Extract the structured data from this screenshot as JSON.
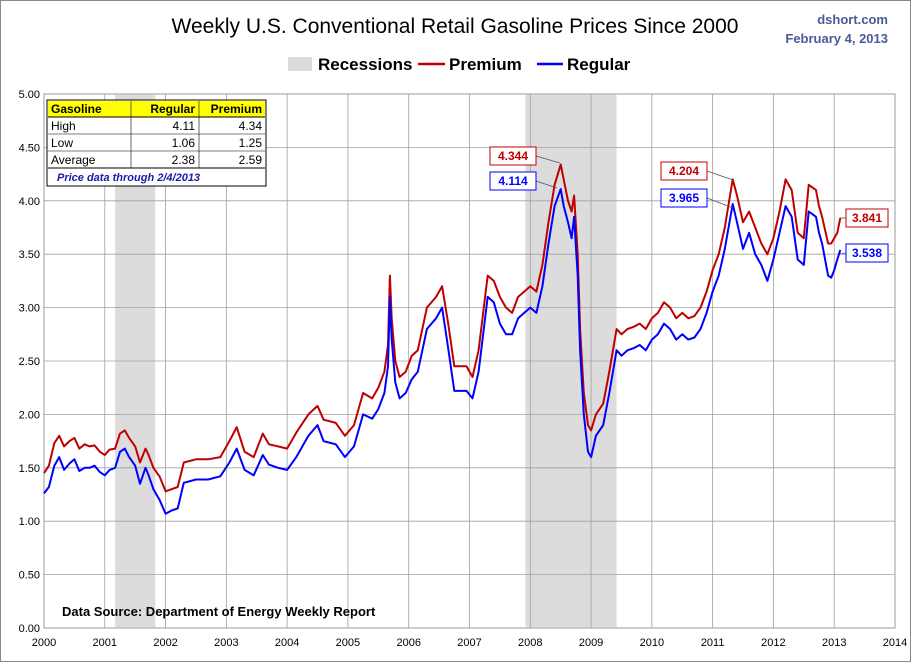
{
  "header": {
    "title": "Weekly U.S. Conventional Retail Gasoline Prices Since 2000",
    "brand": "dshort.com",
    "date": "February 4, 2013"
  },
  "colors": {
    "premium": "#c00000",
    "regular": "#0000ff",
    "recession": "#dcdcdc"
  },
  "legend": {
    "recessions": "Recessions",
    "premium": "Premium",
    "regular": "Regular"
  },
  "source": "Data Source: Department of Energy Weekly Report",
  "stats_table": {
    "headers": [
      "Gasoline",
      "Regular",
      "Premium"
    ],
    "rows": [
      {
        "label": "High",
        "regular": "4.11",
        "premium": "4.34"
      },
      {
        "label": "Low",
        "regular": "1.06",
        "premium": "1.25"
      },
      {
        "label": "Average",
        "regular": "2.38",
        "premium": "2.59"
      }
    ],
    "note": "Price data through 2/4/2013"
  },
  "annotations": [
    {
      "text": "4.344",
      "series": "premium"
    },
    {
      "text": "4.114",
      "series": "regular"
    },
    {
      "text": "4.204",
      "series": "premium"
    },
    {
      "text": "3.965",
      "series": "regular"
    },
    {
      "text": "3.841",
      "series": "premium"
    },
    {
      "text": "3.538",
      "series": "regular"
    }
  ],
  "chart_data": {
    "type": "line",
    "title": "Weekly U.S. Conventional Retail Gasoline Prices Since 2000",
    "xlim": [
      2000,
      2014
    ],
    "ylim": [
      0,
      5
    ],
    "x_ticks": [
      "2000",
      "2001",
      "2002",
      "2003",
      "2004",
      "2005",
      "2006",
      "2007",
      "2008",
      "2009",
      "2010",
      "2011",
      "2012",
      "2013",
      "2014"
    ],
    "y_ticks": [
      "0.00",
      "0.50",
      "1.00",
      "1.50",
      "2.00",
      "2.50",
      "3.00",
      "3.50",
      "4.00",
      "4.50",
      "5.00"
    ],
    "grid": true,
    "legend_position": "top-center",
    "recessions": [
      [
        2001.17,
        2001.83
      ],
      [
        2007.92,
        2009.42
      ]
    ],
    "series": [
      {
        "name": "Premium",
        "x": [
          2000.0,
          2000.08,
          2000.17,
          2000.25,
          2000.33,
          2000.42,
          2000.5,
          2000.58,
          2000.67,
          2000.75,
          2000.83,
          2000.92,
          2001.0,
          2001.08,
          2001.17,
          2001.25,
          2001.33,
          2001.4,
          2001.5,
          2001.58,
          2001.67,
          2001.72,
          2001.8,
          2001.9,
          2002.0,
          2002.1,
          2002.2,
          2002.3,
          2002.5,
          2002.7,
          2002.9,
          2003.05,
          2003.17,
          2003.3,
          2003.45,
          2003.6,
          2003.7,
          2003.85,
          2004.0,
          2004.15,
          2004.35,
          2004.5,
          2004.6,
          2004.8,
          2004.95,
          2005.1,
          2005.25,
          2005.4,
          2005.5,
          2005.6,
          2005.66,
          2005.69,
          2005.72,
          2005.78,
          2005.85,
          2005.95,
          2006.05,
          2006.15,
          2006.3,
          2006.45,
          2006.55,
          2006.65,
          2006.75,
          2006.85,
          2006.95,
          2007.05,
          2007.15,
          2007.3,
          2007.4,
          2007.5,
          2007.6,
          2007.7,
          2007.8,
          2007.9,
          2008.0,
          2008.1,
          2008.2,
          2008.3,
          2008.4,
          2008.5,
          2008.55,
          2008.62,
          2008.68,
          2008.72,
          2008.78,
          2008.82,
          2008.88,
          2008.95,
          2009.0,
          2009.08,
          2009.2,
          2009.3,
          2009.42,
          2009.5,
          2009.6,
          2009.7,
          2009.8,
          2009.9,
          2010.0,
          2010.1,
          2010.2,
          2010.3,
          2010.4,
          2010.5,
          2010.6,
          2010.7,
          2010.8,
          2010.9,
          2011.0,
          2011.1,
          2011.2,
          2011.33,
          2011.4,
          2011.5,
          2011.6,
          2011.7,
          2011.8,
          2011.9,
          2012.0,
          2012.1,
          2012.2,
          2012.3,
          2012.4,
          2012.5,
          2012.58,
          2012.7,
          2012.75,
          2012.8,
          2012.9,
          2012.95,
          2013.0,
          2013.05,
          2013.1
        ],
        "y": [
          1.45,
          1.52,
          1.73,
          1.8,
          1.7,
          1.75,
          1.78,
          1.68,
          1.72,
          1.7,
          1.71,
          1.65,
          1.62,
          1.67,
          1.68,
          1.82,
          1.85,
          1.78,
          1.7,
          1.55,
          1.68,
          1.62,
          1.5,
          1.42,
          1.28,
          1.3,
          1.32,
          1.55,
          1.58,
          1.58,
          1.6,
          1.75,
          1.88,
          1.65,
          1.6,
          1.82,
          1.72,
          1.7,
          1.68,
          1.83,
          2.0,
          2.08,
          1.95,
          1.92,
          1.8,
          1.9,
          2.2,
          2.15,
          2.25,
          2.4,
          2.65,
          3.3,
          2.9,
          2.5,
          2.35,
          2.4,
          2.55,
          2.6,
          3.0,
          3.1,
          3.2,
          2.85,
          2.45,
          2.45,
          2.45,
          2.35,
          2.6,
          3.3,
          3.25,
          3.1,
          3.0,
          2.95,
          3.1,
          3.15,
          3.2,
          3.15,
          3.4,
          3.8,
          4.15,
          4.34,
          4.2,
          4.0,
          3.9,
          4.05,
          3.5,
          2.8,
          2.2,
          1.9,
          1.85,
          2.0,
          2.1,
          2.4,
          2.8,
          2.75,
          2.8,
          2.82,
          2.85,
          2.8,
          2.9,
          2.95,
          3.05,
          3.0,
          2.9,
          2.95,
          2.9,
          2.92,
          3.0,
          3.15,
          3.35,
          3.5,
          3.75,
          4.2,
          4.05,
          3.8,
          3.9,
          3.75,
          3.6,
          3.5,
          3.65,
          3.9,
          4.2,
          4.1,
          3.7,
          3.65,
          4.15,
          4.1,
          3.95,
          3.85,
          3.6,
          3.6,
          3.65,
          3.7,
          3.84
        ]
      },
      {
        "name": "Regular",
        "x": [
          2000.0,
          2000.08,
          2000.17,
          2000.25,
          2000.33,
          2000.42,
          2000.5,
          2000.58,
          2000.67,
          2000.75,
          2000.83,
          2000.92,
          2001.0,
          2001.08,
          2001.17,
          2001.25,
          2001.33,
          2001.4,
          2001.5,
          2001.58,
          2001.67,
          2001.72,
          2001.8,
          2001.9,
          2002.0,
          2002.1,
          2002.2,
          2002.3,
          2002.5,
          2002.7,
          2002.9,
          2003.05,
          2003.17,
          2003.3,
          2003.45,
          2003.6,
          2003.7,
          2003.85,
          2004.0,
          2004.15,
          2004.35,
          2004.5,
          2004.6,
          2004.8,
          2004.95,
          2005.1,
          2005.25,
          2005.4,
          2005.5,
          2005.6,
          2005.66,
          2005.69,
          2005.72,
          2005.78,
          2005.85,
          2005.95,
          2006.05,
          2006.15,
          2006.3,
          2006.45,
          2006.55,
          2006.65,
          2006.75,
          2006.85,
          2006.95,
          2007.05,
          2007.15,
          2007.3,
          2007.4,
          2007.5,
          2007.6,
          2007.7,
          2007.8,
          2007.9,
          2008.0,
          2008.1,
          2008.2,
          2008.3,
          2008.4,
          2008.5,
          2008.55,
          2008.62,
          2008.68,
          2008.72,
          2008.78,
          2008.82,
          2008.88,
          2008.95,
          2009.0,
          2009.08,
          2009.2,
          2009.3,
          2009.42,
          2009.5,
          2009.6,
          2009.7,
          2009.8,
          2009.9,
          2010.0,
          2010.1,
          2010.2,
          2010.3,
          2010.4,
          2010.5,
          2010.6,
          2010.7,
          2010.8,
          2010.9,
          2011.0,
          2011.1,
          2011.2,
          2011.33,
          2011.4,
          2011.5,
          2011.6,
          2011.7,
          2011.8,
          2011.9,
          2012.0,
          2012.1,
          2012.2,
          2012.3,
          2012.4,
          2012.5,
          2012.58,
          2012.7,
          2012.75,
          2012.8,
          2012.9,
          2012.95,
          2013.0,
          2013.05,
          2013.1
        ],
        "y": [
          1.26,
          1.32,
          1.52,
          1.6,
          1.48,
          1.54,
          1.58,
          1.47,
          1.5,
          1.5,
          1.52,
          1.46,
          1.43,
          1.48,
          1.5,
          1.65,
          1.68,
          1.6,
          1.52,
          1.35,
          1.5,
          1.43,
          1.3,
          1.2,
          1.07,
          1.1,
          1.12,
          1.36,
          1.39,
          1.39,
          1.42,
          1.55,
          1.68,
          1.48,
          1.43,
          1.62,
          1.53,
          1.5,
          1.48,
          1.6,
          1.8,
          1.9,
          1.75,
          1.72,
          1.6,
          1.7,
          2.0,
          1.96,
          2.05,
          2.2,
          2.45,
          3.1,
          2.7,
          2.3,
          2.15,
          2.2,
          2.33,
          2.4,
          2.8,
          2.9,
          3.0,
          2.62,
          2.22,
          2.22,
          2.22,
          2.15,
          2.4,
          3.1,
          3.05,
          2.85,
          2.75,
          2.75,
          2.9,
          2.95,
          3.0,
          2.95,
          3.2,
          3.6,
          3.95,
          4.11,
          3.95,
          3.8,
          3.65,
          3.85,
          3.3,
          2.6,
          2.0,
          1.65,
          1.6,
          1.8,
          1.9,
          2.2,
          2.6,
          2.55,
          2.6,
          2.62,
          2.65,
          2.6,
          2.7,
          2.75,
          2.85,
          2.8,
          2.7,
          2.75,
          2.7,
          2.72,
          2.8,
          2.95,
          3.15,
          3.3,
          3.55,
          3.97,
          3.8,
          3.55,
          3.7,
          3.5,
          3.4,
          3.25,
          3.45,
          3.7,
          3.95,
          3.85,
          3.45,
          3.4,
          3.9,
          3.85,
          3.7,
          3.6,
          3.3,
          3.28,
          3.35,
          3.45,
          3.54
        ]
      }
    ]
  }
}
